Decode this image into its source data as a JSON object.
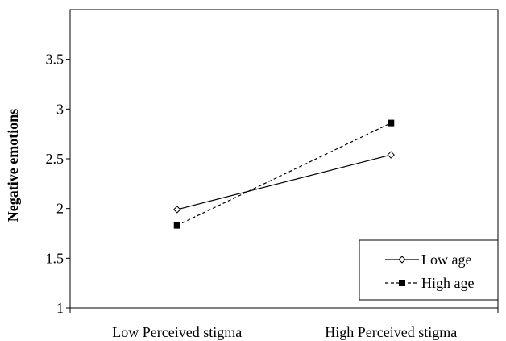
{
  "chart_data": {
    "type": "line",
    "categories": [
      "Low Perceived stigma",
      "High Perceived stigma"
    ],
    "ylabel": "Negative emotions",
    "xlabel": "",
    "ylim": [
      1,
      4
    ],
    "yticks": [
      1,
      1.5,
      2,
      2.5,
      3,
      3.5
    ],
    "ytick_labels": [
      "1",
      "1.5",
      "2",
      "2.5",
      "3",
      "3.5"
    ],
    "grid": false,
    "legend_position": "bottom-right",
    "series": [
      {
        "name": "Low age",
        "values": [
          1.99,
          2.54
        ],
        "marker": "diamond-open",
        "line_style": "solid",
        "color": "#000000"
      },
      {
        "name": "High age",
        "values": [
          1.83,
          2.86
        ],
        "marker": "square-filled",
        "line_style": "dashed",
        "color": "#000000"
      }
    ]
  }
}
